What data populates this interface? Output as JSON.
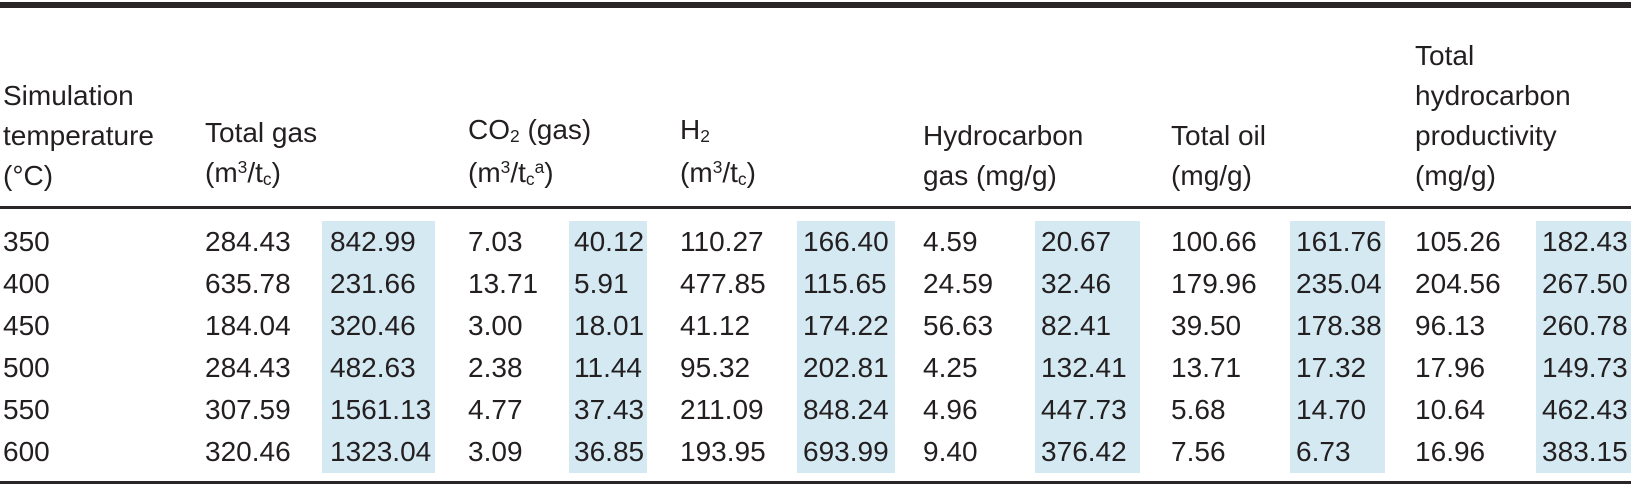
{
  "colors": {
    "highlight": "#d4e9f2",
    "text": "#231f20",
    "rule": "#2a2627"
  },
  "table": {
    "type": "table",
    "header_groups": [
      {
        "id": "simulation-temperature",
        "colspan": 1,
        "lines": [
          [
            {
              "t": "Simulation"
            }
          ],
          [
            {
              "t": "temperature"
            }
          ],
          [
            {
              "t": "(°C)"
            }
          ]
        ]
      },
      {
        "id": "total-gas",
        "colspan": 2,
        "lines": [
          [
            {
              "t": "Total gas"
            }
          ],
          [
            {
              "t": "(m"
            },
            {
              "t": "3",
              "s": "sup"
            },
            {
              "t": "/t"
            },
            {
              "t": "c",
              "s": "sub"
            },
            {
              "t": ")"
            }
          ]
        ]
      },
      {
        "id": "co2-gas",
        "colspan": 2,
        "lines": [
          [
            {
              "t": "CO"
            },
            {
              "t": "2",
              "s": "sub"
            },
            {
              "t": " (gas)"
            }
          ],
          [
            {
              "t": "(m"
            },
            {
              "t": "3",
              "s": "sup"
            },
            {
              "t": "/t"
            },
            {
              "t": "c",
              "s": "sub"
            },
            {
              "t": "a",
              "s": "sup"
            },
            {
              "t": ")"
            }
          ]
        ]
      },
      {
        "id": "h2",
        "colspan": 2,
        "lines": [
          [
            {
              "t": "H"
            },
            {
              "t": "2",
              "s": "sub"
            }
          ],
          [
            {
              "t": "(m"
            },
            {
              "t": "3",
              "s": "sup"
            },
            {
              "t": "/t"
            },
            {
              "t": "c",
              "s": "sub"
            },
            {
              "t": ")"
            }
          ]
        ]
      },
      {
        "id": "hydrocarbon-gas",
        "colspan": 2,
        "lines": [
          [
            {
              "t": "Hydrocarbon"
            }
          ],
          [
            {
              "t": "gas (mg/g)"
            }
          ]
        ]
      },
      {
        "id": "total-oil",
        "colspan": 2,
        "lines": [
          [
            {
              "t": "Total oil"
            }
          ],
          [
            {
              "t": "(mg/g)"
            }
          ]
        ]
      },
      {
        "id": "total-hydrocarbon-productivity",
        "colspan": 2,
        "lines": [
          [
            {
              "t": "Total"
            }
          ],
          [
            {
              "t": "hydrocarbon"
            }
          ],
          [
            {
              "t": "productivity"
            }
          ],
          [
            {
              "t": "(mg/g)"
            }
          ]
        ]
      }
    ],
    "rows": [
      {
        "temperature": "350",
        "values": [
          "284.43",
          "842.99",
          "7.03",
          "40.12",
          "110.27",
          "166.40",
          "4.59",
          "20.67",
          "100.66",
          "161.76",
          "105.26",
          "182.43"
        ]
      },
      {
        "temperature": "400",
        "values": [
          "635.78",
          "231.66",
          "13.71",
          "5.91",
          "477.85",
          "115.65",
          "24.59",
          "32.46",
          "179.96",
          "235.04",
          "204.56",
          "267.50"
        ]
      },
      {
        "temperature": "450",
        "values": [
          "184.04",
          "320.46",
          "3.00",
          "18.01",
          "41.12",
          "174.22",
          "56.63",
          "82.41",
          "39.50",
          "178.38",
          "96.13",
          "260.78"
        ]
      },
      {
        "temperature": "500",
        "values": [
          "284.43",
          "482.63",
          "2.38",
          "11.44",
          "95.32",
          "202.81",
          "4.25",
          "132.41",
          "13.71",
          "17.32",
          "17.96",
          "149.73"
        ]
      },
      {
        "temperature": "550",
        "values": [
          "307.59",
          "1561.13",
          "4.77",
          "37.43",
          "211.09",
          "848.24",
          "4.96",
          "447.73",
          "5.68",
          "14.70",
          "10.64",
          "462.43"
        ]
      },
      {
        "temperature": "600",
        "values": [
          "320.46",
          "1323.04",
          "3.09",
          "36.85",
          "193.95",
          "693.99",
          "9.40",
          "376.42",
          "7.56",
          "6.73",
          "16.96",
          "383.15"
        ]
      }
    ],
    "highlighted_value_columns": [
      1,
      3,
      5,
      7,
      9,
      11
    ]
  }
}
